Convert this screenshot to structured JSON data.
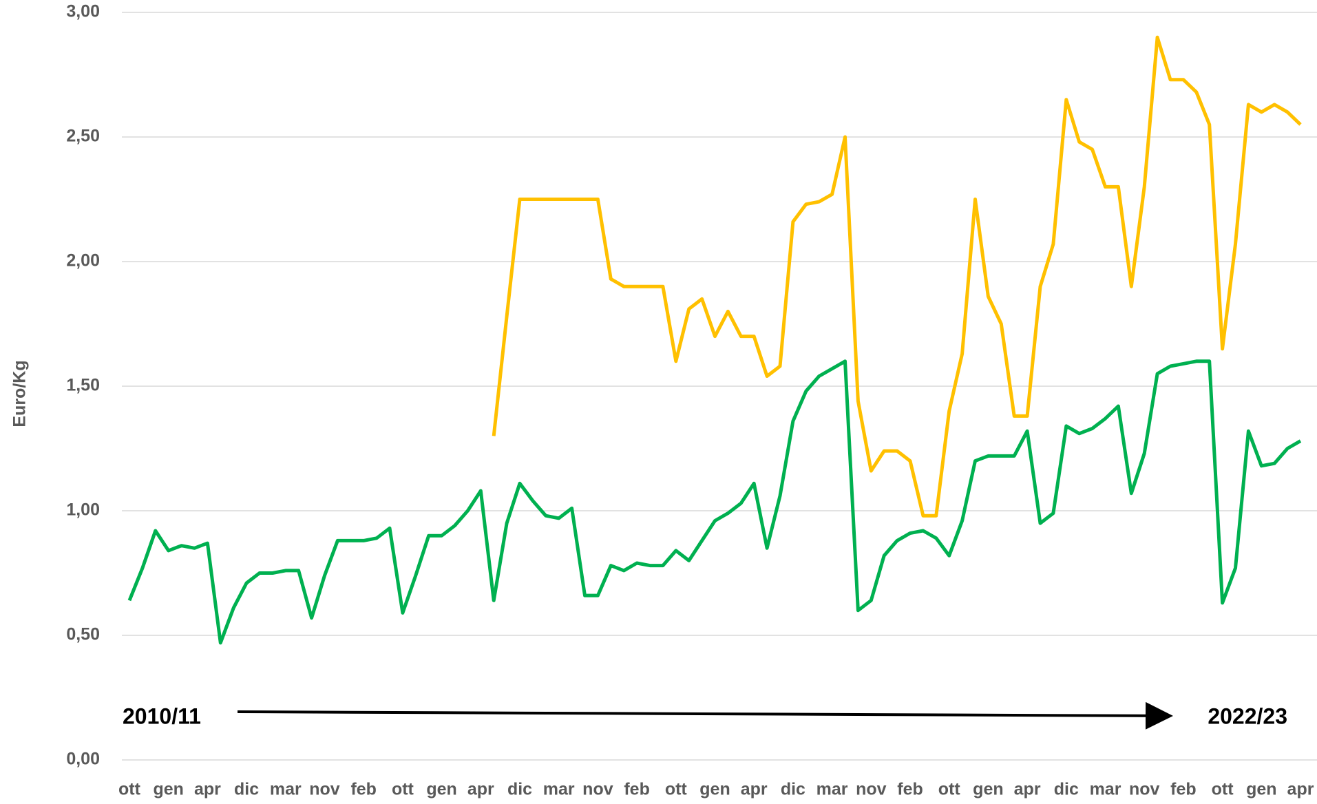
{
  "chart_data": {
    "type": "line",
    "ylabel": "Euro/Kg",
    "annotations": [
      "2010/11",
      "2022/23"
    ],
    "categories": [
      "ott",
      null,
      null,
      "gen",
      null,
      null,
      "apr",
      null,
      null,
      "dic",
      null,
      null,
      "mar",
      null,
      null,
      "nov",
      null,
      null,
      "feb",
      null,
      null,
      "ott",
      null,
      null,
      "gen",
      null,
      null,
      "apr",
      null,
      null,
      "dic",
      null,
      null,
      "mar",
      null,
      null,
      "nov",
      null,
      null,
      "feb",
      null,
      null,
      "ott",
      null,
      null,
      "gen",
      null,
      null,
      "apr",
      null,
      null,
      "dic",
      null,
      null,
      "mar",
      null,
      null,
      "nov",
      null,
      null,
      "feb",
      null,
      null,
      "ott",
      null,
      null,
      "gen",
      null,
      null,
      "apr",
      null,
      null,
      "dic",
      null,
      null,
      "mar",
      null,
      null,
      "nov",
      null,
      null,
      "feb",
      null,
      null,
      "ott",
      null,
      null,
      "gen",
      null,
      null,
      "apr"
    ],
    "series": [
      {
        "color": "#00b050",
        "values": [
          0.64,
          0.77,
          0.92,
          0.84,
          0.86,
          0.85,
          0.87,
          0.47,
          0.61,
          0.71,
          0.75,
          0.75,
          0.76,
          0.76,
          0.57,
          0.74,
          0.88,
          0.88,
          0.88,
          0.89,
          0.93,
          0.59,
          0.74,
          0.9,
          0.9,
          0.94,
          1.0,
          1.08,
          0.64,
          0.95,
          1.11,
          1.04,
          0.98,
          0.97,
          1.01,
          0.66,
          0.66,
          0.78,
          0.76,
          0.79,
          0.78,
          0.78,
          0.84,
          0.8,
          0.88,
          0.96,
          0.99,
          1.03,
          1.11,
          0.85,
          1.06,
          1.36,
          1.48,
          1.54,
          1.57,
          1.6,
          0.6,
          0.64,
          0.82,
          0.88,
          0.91,
          0.92,
          0.89,
          0.82,
          0.96,
          1.2,
          1.22,
          1.22,
          1.22,
          1.32,
          0.95,
          0.99,
          1.34,
          1.31,
          1.33,
          1.37,
          1.42,
          1.07,
          1.23,
          1.55,
          1.58,
          1.59,
          1.6,
          1.6,
          0.63,
          0.77,
          1.32,
          1.18,
          1.19,
          1.25,
          1.28
        ]
      },
      {
        "color": "#ffc000",
        "values": [
          null,
          null,
          null,
          null,
          null,
          null,
          null,
          null,
          null,
          null,
          null,
          null,
          null,
          null,
          null,
          null,
          null,
          null,
          null,
          null,
          null,
          null,
          null,
          null,
          null,
          null,
          null,
          null,
          1.3,
          1.78,
          2.25,
          2.25,
          2.25,
          2.25,
          2.25,
          2.25,
          2.25,
          1.93,
          1.9,
          1.9,
          1.9,
          1.9,
          1.6,
          1.81,
          1.85,
          1.7,
          1.8,
          1.7,
          1.7,
          1.54,
          1.58,
          2.16,
          2.23,
          2.24,
          2.27,
          2.5,
          1.44,
          1.16,
          1.24,
          1.24,
          1.2,
          0.98,
          0.98,
          1.4,
          1.63,
          2.25,
          1.86,
          1.75,
          1.38,
          1.38,
          1.9,
          2.07,
          2.65,
          2.48,
          2.45,
          2.3,
          2.3,
          1.9,
          2.3,
          2.9,
          2.73,
          2.73,
          2.68,
          2.55,
          1.65,
          2.07,
          2.63,
          2.6,
          2.63,
          2.6,
          2.55
        ]
      }
    ],
    "ylim": [
      0,
      3
    ],
    "yticks": [
      {
        "value": 0,
        "label": "0,00"
      },
      {
        "value": 0.5,
        "label": "0,50"
      },
      {
        "value": 1,
        "label": "1,00"
      },
      {
        "value": 1.5,
        "label": "1,50"
      },
      {
        "value": 2,
        "label": "2,00"
      },
      {
        "value": 2.5,
        "label": "2,50"
      },
      {
        "value": 3,
        "label": "3,00"
      }
    ],
    "grid": true
  }
}
